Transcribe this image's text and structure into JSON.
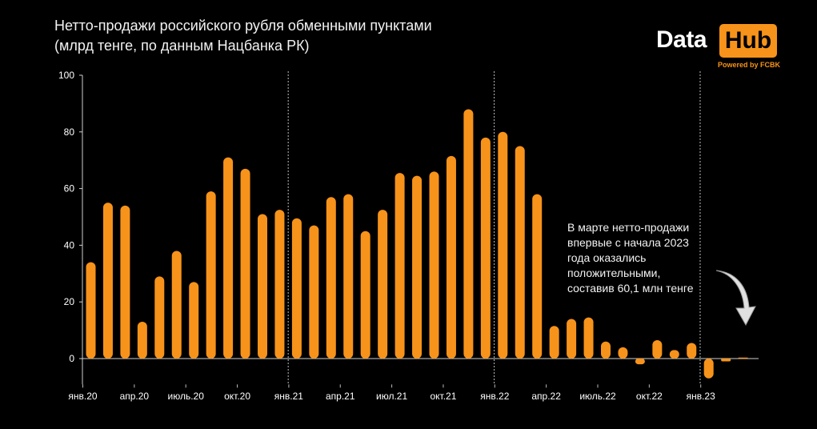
{
  "header": {
    "title_line1": "Нетто-продажи российского рубля обменными пунктами",
    "title_line2": "(млрд тенге, по данным Нацбанка РК)"
  },
  "logo": {
    "word1": "Data",
    "word2": "Hub",
    "tagline": "Powered by FCBK"
  },
  "annotation": {
    "lines": [
      "В марте нетто-продажи",
      "впервые с начала 2023",
      "года оказались",
      "положительными,",
      "составив 60,1 млн тенге"
    ]
  },
  "colors": {
    "bar": "#f7931a",
    "background": "#000000",
    "text": "#ffffff"
  },
  "chart_data": {
    "type": "bar",
    "ylim": [
      -8,
      100
    ],
    "yticks": [
      0,
      20,
      40,
      60,
      80,
      100
    ],
    "grid": false,
    "x_tick_labels": [
      {
        "index": 0,
        "label": "янв.20"
      },
      {
        "index": 3,
        "label": "апр.20"
      },
      {
        "index": 6,
        "label": "июль.20"
      },
      {
        "index": 9,
        "label": "окт.20"
      },
      {
        "index": 12,
        "label": "янв.21"
      },
      {
        "index": 15,
        "label": "апр.21"
      },
      {
        "index": 18,
        "label": "июл.21"
      },
      {
        "index": 21,
        "label": "окт.21"
      },
      {
        "index": 24,
        "label": "янв.22"
      },
      {
        "index": 27,
        "label": "апр.22"
      },
      {
        "index": 30,
        "label": "июль.22"
      },
      {
        "index": 33,
        "label": "окт.22"
      },
      {
        "index": 36,
        "label": "янв.23"
      }
    ],
    "year_separators_before_index": [
      12,
      24,
      36
    ],
    "values": [
      34,
      55,
      54,
      13,
      29,
      38,
      27,
      59,
      71,
      67,
      51,
      52.5,
      49.5,
      47,
      57,
      58,
      45,
      52.5,
      65.5,
      64.5,
      66,
      71.5,
      88,
      78,
      80,
      75,
      58,
      11.5,
      14,
      14.5,
      6,
      4,
      -2,
      6.5,
      3,
      5.5,
      -7,
      -1,
      0.06
    ]
  }
}
